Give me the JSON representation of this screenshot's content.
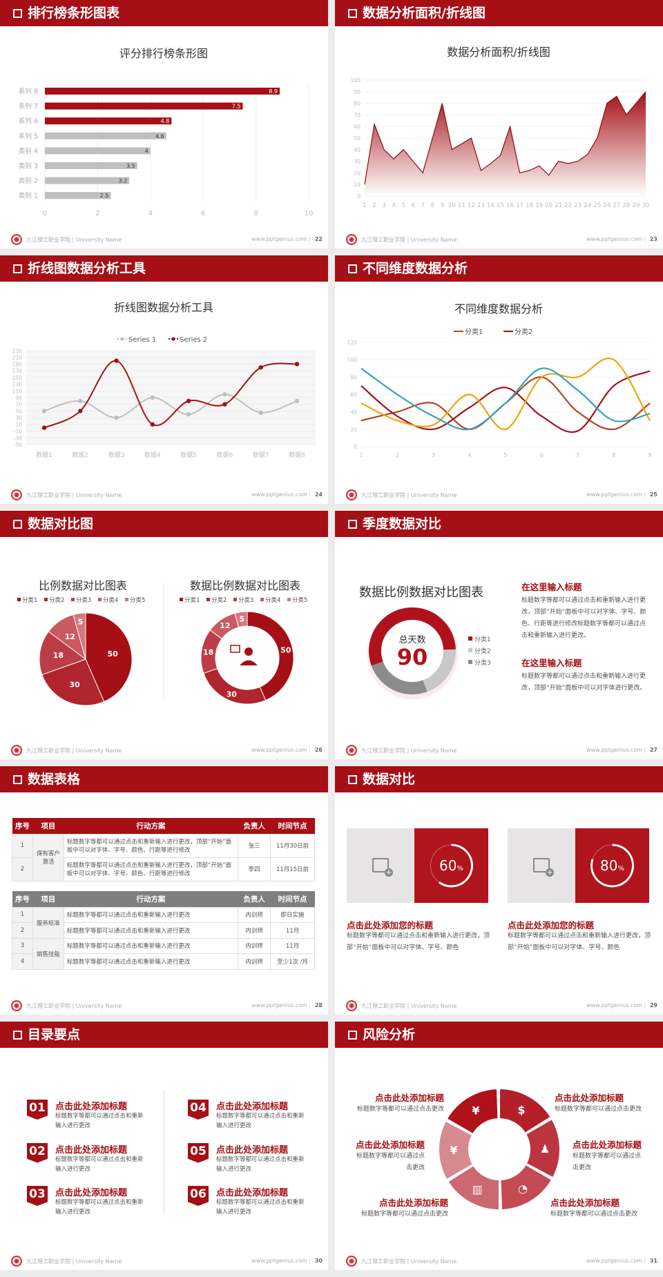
{
  "footer": {
    "school": "九江理工职业学院 | University Name",
    "url": "www.pptgenius.com"
  },
  "colors": {
    "primary": "#a50f15",
    "gray": "#bfbfbf",
    "dark_gray": "#8c8c8c"
  },
  "slides": [
    {
      "title": "排行榜条形图表",
      "page": "22"
    },
    {
      "title": "数据分析面积/折线图",
      "page": "23"
    },
    {
      "title": "折线图数据分析工具",
      "page": "24"
    },
    {
      "title": "不同维度数据分析",
      "page": "25"
    },
    {
      "title": "数据对比图",
      "page": "26"
    },
    {
      "title": "季度数据对比",
      "page": "27"
    },
    {
      "title": "数据表格",
      "page": "28"
    },
    {
      "title": "数据对比",
      "page": "29"
    },
    {
      "title": "目录要点",
      "page": "30"
    },
    {
      "title": "风险分析",
      "page": "31"
    }
  ],
  "chart_data": [
    {
      "type": "bar",
      "orientation": "horizontal",
      "title": "评分排行榜条形图",
      "categories": [
        "系列 8",
        "系列 7",
        "系列 6",
        "系列 5",
        "类别 4",
        "类别 3",
        "类别 2",
        "类别 1"
      ],
      "values": [
        8.9,
        7.5,
        4.8,
        4.6,
        4,
        3.5,
        3.2,
        2.5
      ],
      "bar_colors": [
        "#a50f15",
        "#a50f15",
        "#a50f15",
        "#bfbfbf",
        "#bfbfbf",
        "#bfbfbf",
        "#bfbfbf",
        "#bfbfbf"
      ],
      "xlim": [
        0,
        10
      ],
      "xticks": [
        0,
        2,
        4,
        6,
        8,
        10
      ],
      "grid": true
    },
    {
      "type": "area",
      "title": "数据分析面积/折线图",
      "x": [
        1,
        2,
        3,
        4,
        5,
        6,
        7,
        8,
        9,
        10,
        11,
        12,
        13,
        14,
        15,
        16,
        17,
        18,
        19,
        20,
        21,
        22,
        23,
        24,
        25,
        26,
        27,
        28,
        29,
        30
      ],
      "values": [
        10,
        62,
        40,
        32,
        40,
        30,
        20,
        50,
        80,
        40,
        45,
        50,
        22,
        28,
        35,
        60,
        20,
        22,
        26,
        18,
        30,
        28,
        30,
        36,
        50,
        80,
        86,
        70,
        80,
        90
      ],
      "ylim": [
        0,
        100
      ],
      "yticks": [
        0,
        10,
        20,
        30,
        40,
        50,
        60,
        70,
        80,
        90,
        100
      ],
      "color": "#a50f15",
      "grid": true
    },
    {
      "type": "line",
      "smooth": true,
      "title": "折线图数据分析工具",
      "categories": [
        "数据1",
        "数据2",
        "数据3",
        "数据4",
        "数据5",
        "数据6",
        "数据7",
        "数据8"
      ],
      "series": [
        {
          "name": "Series 1",
          "values": [
            50,
            80,
            30,
            90,
            40,
            100,
            45,
            80
          ],
          "color": "#bfbfbf"
        },
        {
          "name": "Series 2",
          "values": [
            0,
            50,
            200,
            10,
            80,
            70,
            180,
            190
          ],
          "color": "#a50f15"
        }
      ],
      "ylim": [
        -50,
        230
      ],
      "yticks": [
        -50,
        -30,
        -10,
        10,
        30,
        50,
        70,
        90,
        110,
        130,
        150,
        170,
        190,
        210,
        230
      ],
      "legend": "top",
      "grid": true
    },
    {
      "type": "line",
      "smooth": true,
      "title": "不同维度数据分析",
      "x": [
        1,
        2,
        3,
        4,
        5,
        6,
        7,
        8,
        9
      ],
      "series": [
        {
          "name": "分类1",
          "values": [
            30,
            40,
            50,
            20,
            50,
            80,
            40,
            20,
            50
          ],
          "color": "#b5451b"
        },
        {
          "name": "分类2",
          "values": [
            70,
            35,
            20,
            45,
            68,
            35,
            18,
            70,
            87
          ],
          "color": "#a50f15"
        },
        {
          "values": [
            50,
            30,
            25,
            60,
            20,
            80,
            80,
            100,
            30
          ],
          "color": "#f0a30a"
        },
        {
          "values": [
            90,
            60,
            35,
            20,
            50,
            90,
            65,
            30,
            38
          ],
          "color": "#2ea3c0"
        }
      ],
      "ylim": [
        0,
        120
      ],
      "yticks": [
        0,
        20,
        40,
        60,
        80,
        100,
        120
      ],
      "legend": "top",
      "grid": true
    },
    {
      "type": "pie",
      "title": "比例数据对比图表",
      "categories": [
        "分类1",
        "分类2",
        "分类3",
        "分类4",
        "分类5"
      ],
      "values": [
        50,
        30,
        18,
        12,
        5
      ],
      "colors": [
        "#a50f15",
        "#b0252e",
        "#bc3d47",
        "#c85a62",
        "#d4797f"
      ],
      "legend": "top"
    },
    {
      "type": "donut",
      "title": "数据比例数据对比图表",
      "categories": [
        "分类1",
        "分类2",
        "分类3",
        "分类4",
        "分类5"
      ],
      "values": [
        50,
        30,
        18,
        12,
        5
      ],
      "colors": [
        "#a50f15",
        "#b0252e",
        "#bc3d47",
        "#c85a62",
        "#d4797f"
      ],
      "legend": "top",
      "center_icon": "presenter-icon"
    },
    {
      "type": "donut",
      "title": "数据比例数据对比图表",
      "center_label": "总天数",
      "center_value": "90",
      "categories": [
        "分类1",
        "分类2",
        "分类3"
      ],
      "values": [
        55,
        20,
        25
      ],
      "colors": [
        "#b0121b",
        "#c8c8c8",
        "#8c8c8c"
      ],
      "legend": "right"
    }
  ],
  "quarter": {
    "blocks": [
      {
        "heading": "在这里输入标题",
        "body": "标题数字等都可以通过点击和重新输入进行更改，顶部“开始”面板中可以对字体、字号、颜色、行距等进行修改标题数字等都可以通过点击和重新输入进行更改。"
      },
      {
        "heading": "在这里输入标题",
        "body": "标题数字等都可以通过点击和重新输入进行更改，顶部“开始”面板中可以对字体进行更改。"
      }
    ]
  },
  "tables": [
    {
      "headers": [
        "序号",
        "项目",
        "行动方案",
        "负责人",
        "时间节点"
      ],
      "header_color": "#a50f15",
      "groups": [
        {
          "label": "保有客户激活",
          "span": 2
        }
      ],
      "rows": [
        {
          "no": "1",
          "plan": "标题数字等都可以通过点击和重新输入进行更改，顶部“开始”面板中可以对字体、字号、颜色、行距等进行修改",
          "owner": "张三",
          "time": "11月30日前"
        },
        {
          "no": "2",
          "plan": "标题数字等都可以通过点击和重新输入进行更改，顶部“开始”面板中可以对字体、字号、颜色、行距等进行修改",
          "owner": "李四",
          "time": "11月15日前"
        }
      ]
    },
    {
      "headers": [
        "序号",
        "项目",
        "行动方案",
        "负责人",
        "时间节点"
      ],
      "header_color": "#7f7f7f",
      "groups": [
        {
          "label": "服务标准",
          "span": 2
        },
        {
          "label": "销售技能",
          "span": 2
        }
      ],
      "rows": [
        {
          "no": "1",
          "plan": "标题数字等都可以通过点击和重新输入进行更改",
          "owner": "内训师",
          "time": "即日实施"
        },
        {
          "no": "2",
          "plan": "标题数字等都可以通过点击和重新输入进行更改",
          "owner": "内训师",
          "time": "11月"
        },
        {
          "no": "3",
          "plan": "标题数字等都可以通过点击和重新输入进行更改",
          "owner": "内训师",
          "time": "11月"
        },
        {
          "no": "4",
          "plan": "标题数字等都可以通过点击和重新输入进行更改",
          "owner": "内训师",
          "time": "至少1次 /月"
        }
      ]
    }
  ],
  "compare": {
    "items": [
      {
        "percent": 60,
        "percent_text": "60",
        "unit": "%",
        "heading": "点击此处添加您的标题",
        "body": "标题数字等都可以通过点击和重新输入进行更改，顶部“开始”面板中可以对字体、字号、颜色",
        "image_icon": "add-image-icon"
      },
      {
        "percent": 80,
        "percent_text": "80",
        "unit": "%",
        "heading": "点击此处添加您的标题",
        "body": "标题数字等都可以通过点击和重新输入进行更改，顶部“开始”面板中可以对字体、字号、颜色",
        "image_icon": "add-image-icon"
      }
    ]
  },
  "toc": {
    "items": [
      {
        "num": "01",
        "heading": "点击此处添加标题",
        "body": "标题数字等都可以通过点击和重新输入进行更改"
      },
      {
        "num": "02",
        "heading": "点击此处添加标题",
        "body": "标题数字等都可以通过点击和重新输入进行更改"
      },
      {
        "num": "03",
        "heading": "点击此处添加标题",
        "body": "标题数字等都可以通过点击和重新输入进行更改"
      },
      {
        "num": "04",
        "heading": "点击此处添加标题",
        "body": "标题数字等都可以通过点击和重新输入进行更改"
      },
      {
        "num": "05",
        "heading": "点击此处添加标题",
        "body": "标题数字等都可以通过点击和重新输入进行更改"
      },
      {
        "num": "06",
        "heading": "点击此处添加标题",
        "body": "标题数字等都可以通过点击和重新输入进行更改"
      }
    ]
  },
  "risk": {
    "items": [
      {
        "heading": "点击此处添加标题",
        "body": "标题数字等都可以通过点击更改",
        "icon": "money-bag-icon"
      },
      {
        "heading": "点击此处添加标题",
        "body": "标题数字等都可以通过点击更改",
        "icon": "coins-icon"
      },
      {
        "heading": "点击此处添加标题",
        "body": "标题数字等都可以通过点击更改",
        "icon": "users-icon"
      },
      {
        "heading": "点击此处添加标题",
        "body": "标题数字等都可以通过点击更改",
        "icon": "pie-chart-icon"
      },
      {
        "heading": "点击此处添加标题",
        "body": "标题数字等都可以通过点击更改",
        "icon": "building-icon"
      },
      {
        "heading": "点击此处添加标题",
        "body": "标题数字等都可以通过点击更改",
        "icon": "yuan-hand-icon"
      }
    ]
  }
}
